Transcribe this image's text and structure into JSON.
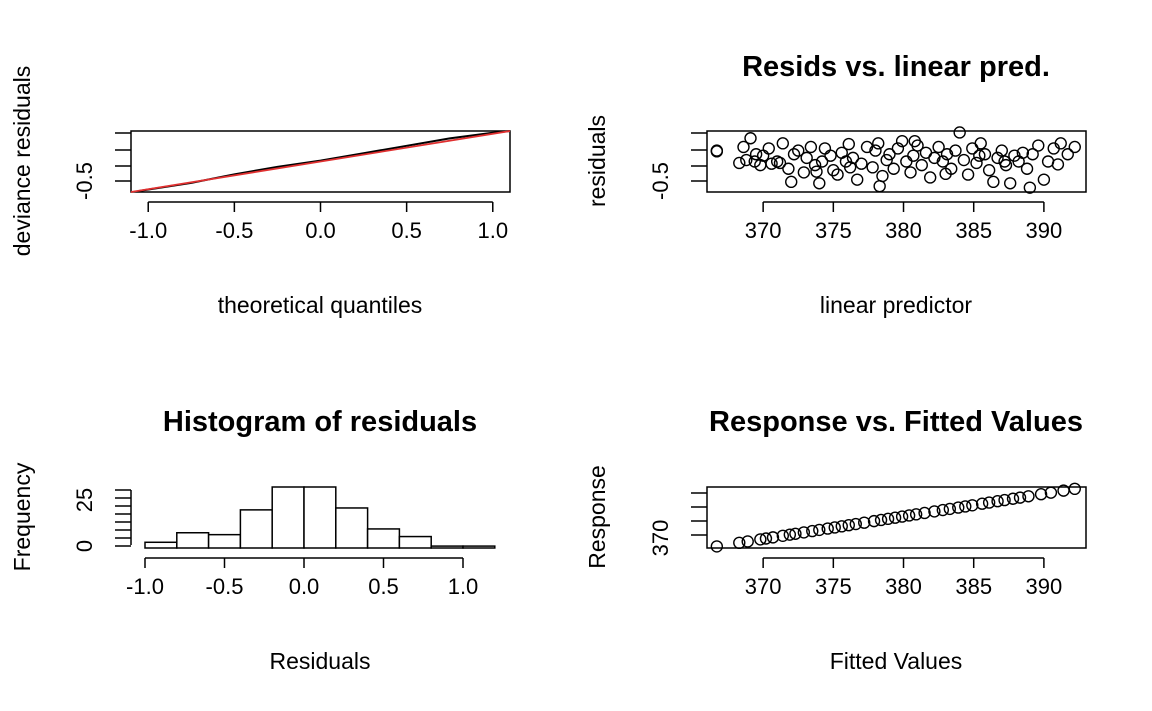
{
  "panels": [
    {
      "id": "qq",
      "type": "qq",
      "title": "",
      "xlabel": "theoretical quantiles",
      "ylabel": "deviance residuals",
      "xticks": [
        "-1.0",
        "-0.5",
        "0.0",
        "0.5",
        "1.0"
      ],
      "yticks": [
        "-0.5"
      ],
      "ref_line_color": "#e03030"
    },
    {
      "id": "resid",
      "type": "scatter",
      "title": "Resids vs. linear pred.",
      "xlabel": "linear predictor",
      "ylabel": "residuals",
      "xticks": [
        "370",
        "375",
        "380",
        "385",
        "390"
      ],
      "yticks": [
        "-0.5"
      ]
    },
    {
      "id": "hist",
      "type": "bar",
      "title": "Histogram of residuals",
      "xlabel": "Residuals",
      "ylabel": "Frequency",
      "xticks": [
        "-1.0",
        "-0.5",
        "0.0",
        "0.5",
        "1.0"
      ],
      "yticks": [
        "0",
        "25"
      ]
    },
    {
      "id": "fitted",
      "type": "scatter",
      "title": "Response vs. Fitted Values",
      "xlabel": "Fitted Values",
      "ylabel": "Response",
      "xticks": [
        "370",
        "375",
        "380",
        "385",
        "390"
      ],
      "yticks": [
        "370"
      ]
    }
  ],
  "chart_data": [
    {
      "type": "line",
      "series": [
        {
          "values": [
            [
              -1.05,
              -0.73
            ],
            [
              -0.75,
              -0.59
            ],
            [
              -0.5,
              -0.44
            ],
            [
              -0.25,
              -0.31
            ],
            [
              0.0,
              -0.2
            ],
            [
              0.25,
              -0.07
            ],
            [
              0.5,
              0.06
            ],
            [
              0.75,
              0.19
            ],
            [
              1.0,
              0.29
            ],
            [
              1.1,
              0.32
            ]
          ]
        }
      ],
      "reference_line": [
        [
          -1.1,
          -0.75
        ],
        [
          1.1,
          0.32
        ]
      ],
      "xlim": [
        -1.1,
        1.1
      ],
      "ylim": [
        -0.75,
        0.32
      ]
    },
    {
      "type": "scatter",
      "x": [
        366.7,
        368.3,
        368.6,
        368.8,
        369.1,
        369.4,
        369.8,
        370.0,
        370.4,
        370.6,
        371.0,
        371.4,
        371.8,
        372.0,
        372.2,
        372.5,
        372.9,
        373.1,
        373.4,
        373.7,
        374.0,
        374.2,
        374.4,
        374.8,
        375.0,
        375.3,
        375.6,
        375.9,
        376.1,
        376.4,
        376.7,
        377.0,
        377.4,
        377.8,
        378.0,
        378.2,
        378.5,
        378.8,
        379.0,
        379.3,
        379.6,
        379.9,
        380.2,
        380.5,
        380.7,
        381.0,
        381.3,
        381.6,
        381.9,
        382.2,
        382.5,
        382.8,
        383.1,
        383.4,
        383.7,
        384.0,
        384.3,
        384.6,
        384.9,
        385.2,
        385.5,
        385.8,
        386.1,
        386.4,
        386.7,
        387.0,
        387.3,
        387.6,
        387.9,
        388.2,
        388.5,
        388.8,
        389.2,
        389.6,
        390.0,
        390.3,
        390.7,
        391.2,
        391.7,
        392.2,
        366.7,
        369.5,
        371.2,
        373.8,
        376.2,
        378.3,
        380.8,
        383.0,
        385.4,
        387.2,
        389.0,
        391.0
      ],
      "y": [
        -0.15,
        -0.32,
        -0.1,
        -0.28,
        0.02,
        -0.3,
        -0.35,
        -0.22,
        -0.12,
        -0.33,
        -0.3,
        -0.05,
        -0.4,
        -0.58,
        -0.2,
        -0.15,
        -0.45,
        -0.25,
        -0.1,
        -0.35,
        -0.6,
        -0.3,
        -0.12,
        -0.22,
        -0.42,
        -0.48,
        -0.18,
        -0.3,
        -0.06,
        -0.25,
        -0.55,
        -0.33,
        -0.1,
        -0.38,
        -0.15,
        -0.05,
        -0.5,
        -0.28,
        -0.2,
        -0.4,
        -0.12,
        -0.02,
        -0.3,
        -0.45,
        -0.22,
        -0.08,
        -0.35,
        -0.18,
        -0.52,
        -0.25,
        -0.1,
        -0.3,
        -0.2,
        -0.4,
        -0.15,
        0.1,
        -0.28,
        -0.48,
        -0.12,
        -0.32,
        -0.05,
        -0.2,
        -0.42,
        -0.58,
        -0.25,
        -0.15,
        -0.35,
        -0.6,
        -0.22,
        -0.3,
        -0.18,
        -0.4,
        -0.2,
        -0.08,
        -0.55,
        -0.3,
        -0.12,
        -0.05,
        -0.2,
        -0.1,
        -0.16,
        -0.2,
        -0.32,
        -0.44,
        -0.38,
        -0.64,
        -0.02,
        -0.47,
        -0.22,
        -0.3,
        -0.66,
        -0.34
      ],
      "xlim": [
        366,
        393
      ],
      "ylim": [
        -0.72,
        0.12
      ]
    },
    {
      "type": "bar",
      "bins": [
        [
          -1.0,
          -0.8
        ],
        [
          -0.8,
          -0.6
        ],
        [
          -0.6,
          -0.4
        ],
        [
          -0.4,
          -0.2
        ],
        [
          -0.2,
          0.0
        ],
        [
          0.0,
          0.2
        ],
        [
          0.2,
          0.4
        ],
        [
          0.4,
          0.6
        ],
        [
          0.6,
          0.8
        ],
        [
          0.8,
          1.0
        ],
        [
          1.0,
          1.2
        ]
      ],
      "values": [
        3,
        8,
        7,
        20,
        32,
        32,
        21,
        10,
        6,
        1,
        1
      ],
      "xlim": [
        -1.0,
        1.2
      ],
      "ylim": [
        0,
        32
      ]
    },
    {
      "type": "scatter",
      "x": [
        366.7,
        368.3,
        368.9,
        369.8,
        370.2,
        370.7,
        371.4,
        371.9,
        372.3,
        372.9,
        373.5,
        374.0,
        374.6,
        375.1,
        375.6,
        376.1,
        376.6,
        377.2,
        377.9,
        378.4,
        378.9,
        379.4,
        379.9,
        380.4,
        380.9,
        381.5,
        382.2,
        382.8,
        383.3,
        383.9,
        384.4,
        384.9,
        385.6,
        386.1,
        386.7,
        387.2,
        387.8,
        388.3,
        388.9,
        389.8,
        390.5,
        391.4,
        392.2
      ],
      "y": [
        366.7,
        368.3,
        368.9,
        369.8,
        370.2,
        370.7,
        371.4,
        371.9,
        372.3,
        372.9,
        373.5,
        374.0,
        374.6,
        375.1,
        375.6,
        376.1,
        376.6,
        377.2,
        377.9,
        378.4,
        378.9,
        379.4,
        379.9,
        380.4,
        380.9,
        381.5,
        382.2,
        382.8,
        383.3,
        383.9,
        384.4,
        384.9,
        385.6,
        386.1,
        386.7,
        387.2,
        387.8,
        388.3,
        388.9,
        389.8,
        390.5,
        391.4,
        392.2
      ],
      "xlim": [
        366,
        393
      ],
      "ylim": [
        366,
        393
      ]
    }
  ]
}
